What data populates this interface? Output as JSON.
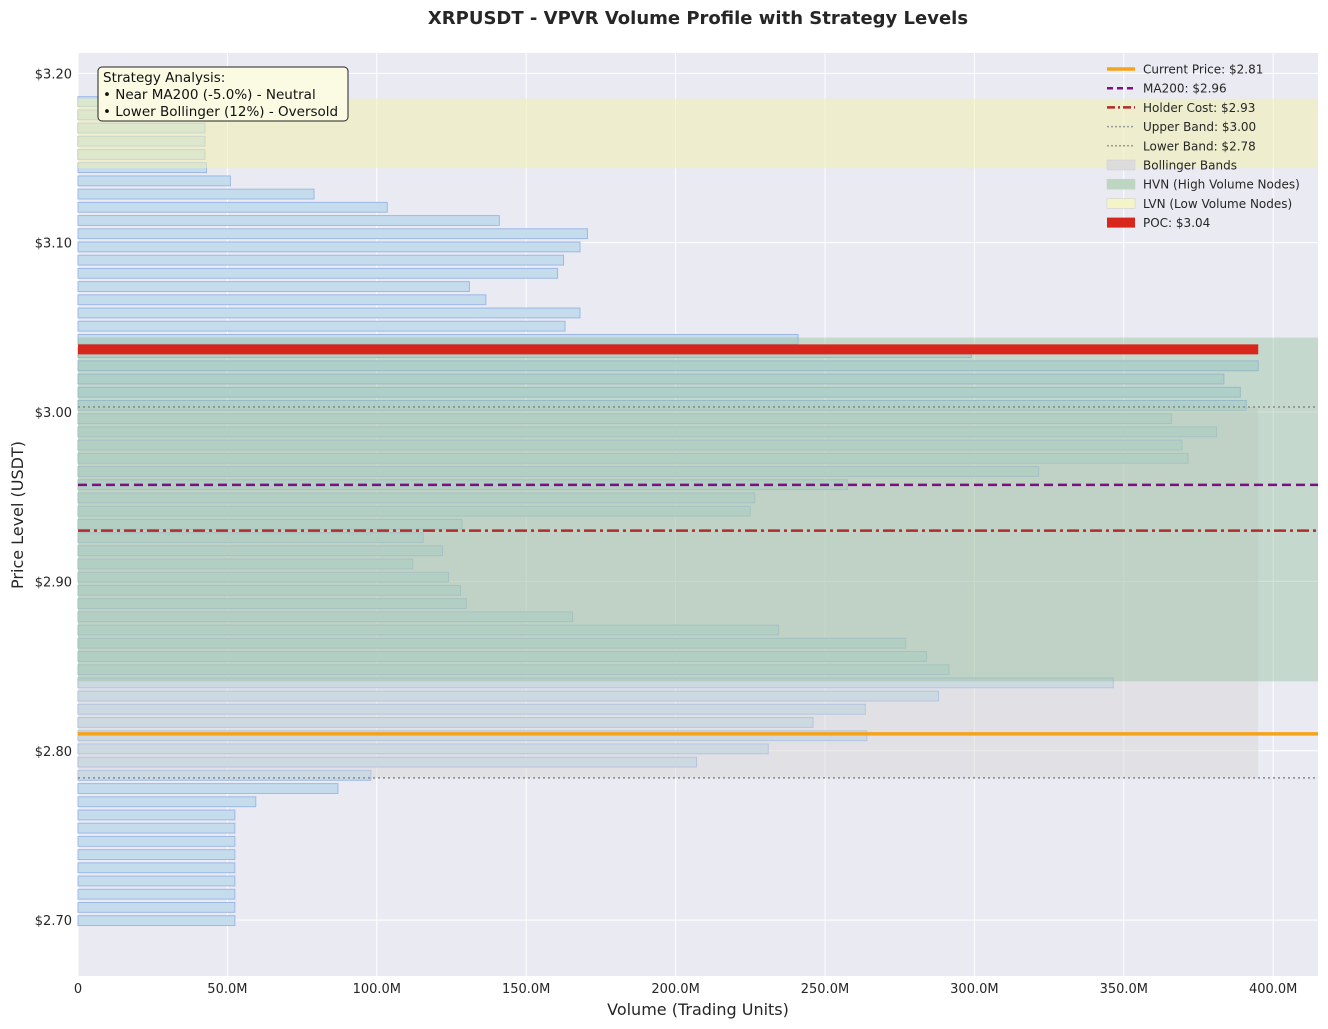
{
  "chart_data": {
    "type": "bar",
    "orientation": "horizontal",
    "title": "XRPUSDT - VPVR Volume Profile with Strategy Levels",
    "xlabel": "Volume (Trading Units)",
    "ylabel": "Price Level (USDT)",
    "xlim": [
      0,
      415000000
    ],
    "ylim": [
      2.667,
      3.212
    ],
    "xticks": [
      0,
      50000000,
      100000000,
      150000000,
      200000000,
      250000000,
      300000000,
      350000000,
      400000000
    ],
    "xtick_labels": [
      "0",
      "50.0M",
      "100.0M",
      "150.0M",
      "200.0M",
      "250.0M",
      "300.0M",
      "350.0M",
      "400.0M"
    ],
    "yticks": [
      2.7,
      2.8,
      2.9,
      3.0,
      3.1,
      3.2
    ],
    "ytick_labels": [
      "$2.70",
      "$2.80",
      "$2.90",
      "$3.00",
      "$3.10",
      "$3.20"
    ],
    "grid": true,
    "legend_position": "top-right",
    "bar_height_price": 0.0058,
    "bars": {
      "prices": [
        2.6997,
        2.7075,
        2.7153,
        2.7231,
        2.7309,
        2.7387,
        2.7465,
        2.7543,
        2.7621,
        2.7699,
        2.7777,
        2.7855,
        2.7933,
        2.8011,
        2.8089,
        2.8167,
        2.8245,
        2.8323,
        2.8401,
        2.8479,
        2.8557,
        2.8635,
        2.8713,
        2.8791,
        2.8869,
        2.8947,
        2.9025,
        2.9103,
        2.9181,
        2.9259,
        2.9337,
        2.9415,
        2.9493,
        2.9571,
        2.9649,
        2.9727,
        2.9805,
        2.9883,
        2.9961,
        3.0039,
        3.0117,
        3.0195,
        3.0273,
        3.0351,
        3.0429,
        3.0507,
        3.0585,
        3.0663,
        3.0741,
        3.0819,
        3.0897,
        3.0975,
        3.1053,
        3.1131,
        3.1209,
        3.1287,
        3.1365,
        3.1443,
        3.1521,
        3.1599,
        3.1677,
        3.1755,
        3.1833
      ],
      "volumes": [
        52500000,
        52500000,
        52500000,
        52500000,
        52500000,
        52500000,
        52500000,
        52500000,
        52500000,
        59500000,
        87000000,
        98000000,
        207000000,
        231000000,
        264000000,
        246000000,
        263500000,
        288000000,
        346500000,
        291500000,
        284000000,
        277000000,
        234500000,
        165500000,
        130000000,
        128000000,
        124000000,
        112000000,
        122000000,
        115500000,
        128500000,
        225000000,
        226500000,
        257500000,
        321500000,
        371500000,
        369500000,
        381000000,
        366000000,
        391000000,
        389000000,
        383500000,
        395000000,
        299000000,
        241000000,
        163000000,
        168000000,
        136500000,
        131000000,
        160500000,
        162500000,
        168000000,
        170500000,
        141000000,
        103500000,
        79000000,
        51000000,
        43000000,
        42500000,
        42500000,
        42500000,
        42500000,
        42500000
      ]
    },
    "poc": {
      "price": 3.037,
      "volume": 395000000
    },
    "levels": {
      "current_price": 2.81,
      "ma200": 2.957,
      "holder_cost": 2.93,
      "upper_band": 3.003,
      "lower_band": 2.784
    },
    "zones": {
      "bollinger": {
        "from": 2.784,
        "to": 3.003,
        "x_to": 395000000
      },
      "hvn": {
        "from": 2.841,
        "to": 3.044
      },
      "lvn": {
        "from": 3.144,
        "to": 3.185
      }
    },
    "colors": {
      "plot_bg": "#eaeaf2",
      "bar_fill": "#c5dcec",
      "bar_edge": "#9db8e8",
      "current_price": "#f5a31a",
      "ma200": "#7b1180",
      "holder_cost": "#b22b2b",
      "bands": "#888888",
      "bollinger_fill": "#dfdfe2",
      "hvn_fill": "#b8d2bc",
      "lvn_fill": "#f0f2c4",
      "poc": "#d7261c"
    },
    "legend": [
      {
        "label": "Current Price: $2.81",
        "style": "line-solid",
        "color": "#f5a31a"
      },
      {
        "label": "MA200: $2.96",
        "style": "line-dashed",
        "color": "#7b1180"
      },
      {
        "label": "Holder Cost: $2.93",
        "style": "line-dashdot",
        "color": "#b22b2b"
      },
      {
        "label": "Upper Band: $3.00",
        "style": "line-dotted",
        "color": "#999999"
      },
      {
        "label": "Lower Band: $2.78",
        "style": "line-dotted",
        "color": "#999999"
      },
      {
        "label": "Bollinger Bands",
        "style": "patch",
        "color": "#dcdcdc"
      },
      {
        "label": "HVN (High Volume Nodes)",
        "style": "patch",
        "color": "#bdd6c1"
      },
      {
        "label": "LVN (Low Volume Nodes)",
        "style": "patch",
        "color": "#f4f4c8"
      },
      {
        "label": "POC: $3.04",
        "style": "patch-solid",
        "color": "#d7261c"
      }
    ],
    "annotation": {
      "lines": [
        "Strategy Analysis:",
        "• Near MA200 (-5.0%) - Neutral",
        "• Lower Bollinger (12%) - Oversold"
      ]
    }
  }
}
